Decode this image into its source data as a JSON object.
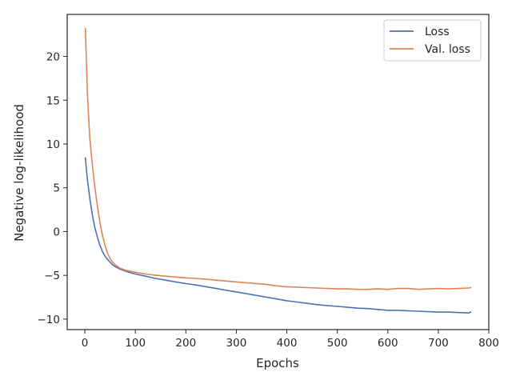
{
  "chart_data": {
    "type": "line",
    "title": "",
    "xlabel": "Epochs",
    "ylabel": "Negative log-likelihood",
    "xlim": [
      -35,
      800
    ],
    "ylim": [
      -11.2,
      24.8
    ],
    "xticks": [
      0,
      100,
      200,
      300,
      400,
      500,
      600,
      700,
      800
    ],
    "yticks": [
      -10,
      -5,
      0,
      5,
      10,
      15,
      20
    ],
    "grid": false,
    "legend": "top-right",
    "series": [
      {
        "name": "Loss",
        "color": "#4c72b0",
        "x": [
          1,
          5,
          10,
          15,
          20,
          25,
          30,
          35,
          40,
          45,
          50,
          55,
          60,
          70,
          80,
          90,
          100,
          120,
          140,
          160,
          180,
          200,
          220,
          240,
          260,
          280,
          300,
          320,
          340,
          360,
          380,
          400,
          420,
          440,
          460,
          480,
          500,
          520,
          540,
          560,
          580,
          600,
          620,
          640,
          660,
          680,
          700,
          720,
          740,
          760,
          764
        ],
        "y": [
          8.4,
          6.0,
          3.7,
          1.8,
          0.4,
          -0.7,
          -1.6,
          -2.3,
          -2.8,
          -3.2,
          -3.5,
          -3.8,
          -4.0,
          -4.3,
          -4.5,
          -4.7,
          -4.85,
          -5.1,
          -5.35,
          -5.55,
          -5.75,
          -5.95,
          -6.1,
          -6.3,
          -6.5,
          -6.7,
          -6.9,
          -7.1,
          -7.3,
          -7.5,
          -7.7,
          -7.9,
          -8.05,
          -8.2,
          -8.35,
          -8.45,
          -8.55,
          -8.65,
          -8.75,
          -8.8,
          -8.9,
          -9.0,
          -9.0,
          -9.05,
          -9.1,
          -9.15,
          -9.2,
          -9.2,
          -9.25,
          -9.3,
          -9.2
        ]
      },
      {
        "name": "Val. loss",
        "color": "#dd8452",
        "x": [
          1,
          3,
          5,
          8,
          10,
          15,
          20,
          25,
          30,
          35,
          40,
          45,
          50,
          55,
          60,
          70,
          80,
          90,
          100,
          120,
          140,
          160,
          180,
          200,
          220,
          240,
          260,
          280,
          300,
          320,
          340,
          360,
          380,
          400,
          420,
          440,
          460,
          480,
          500,
          520,
          540,
          560,
          580,
          600,
          620,
          640,
          660,
          680,
          700,
          720,
          740,
          760,
          764
        ],
        "y": [
          23.2,
          19.5,
          16.0,
          12.5,
          10.5,
          7.5,
          5.0,
          2.8,
          1.0,
          -0.5,
          -1.6,
          -2.5,
          -3.1,
          -3.5,
          -3.8,
          -4.2,
          -4.4,
          -4.55,
          -4.65,
          -4.85,
          -5.0,
          -5.1,
          -5.2,
          -5.3,
          -5.35,
          -5.45,
          -5.55,
          -5.65,
          -5.75,
          -5.85,
          -5.95,
          -6.05,
          -6.2,
          -6.3,
          -6.35,
          -6.4,
          -6.45,
          -6.5,
          -6.55,
          -6.55,
          -6.6,
          -6.6,
          -6.55,
          -6.6,
          -6.5,
          -6.5,
          -6.6,
          -6.55,
          -6.5,
          -6.55,
          -6.5,
          -6.45,
          -6.4
        ]
      }
    ]
  }
}
